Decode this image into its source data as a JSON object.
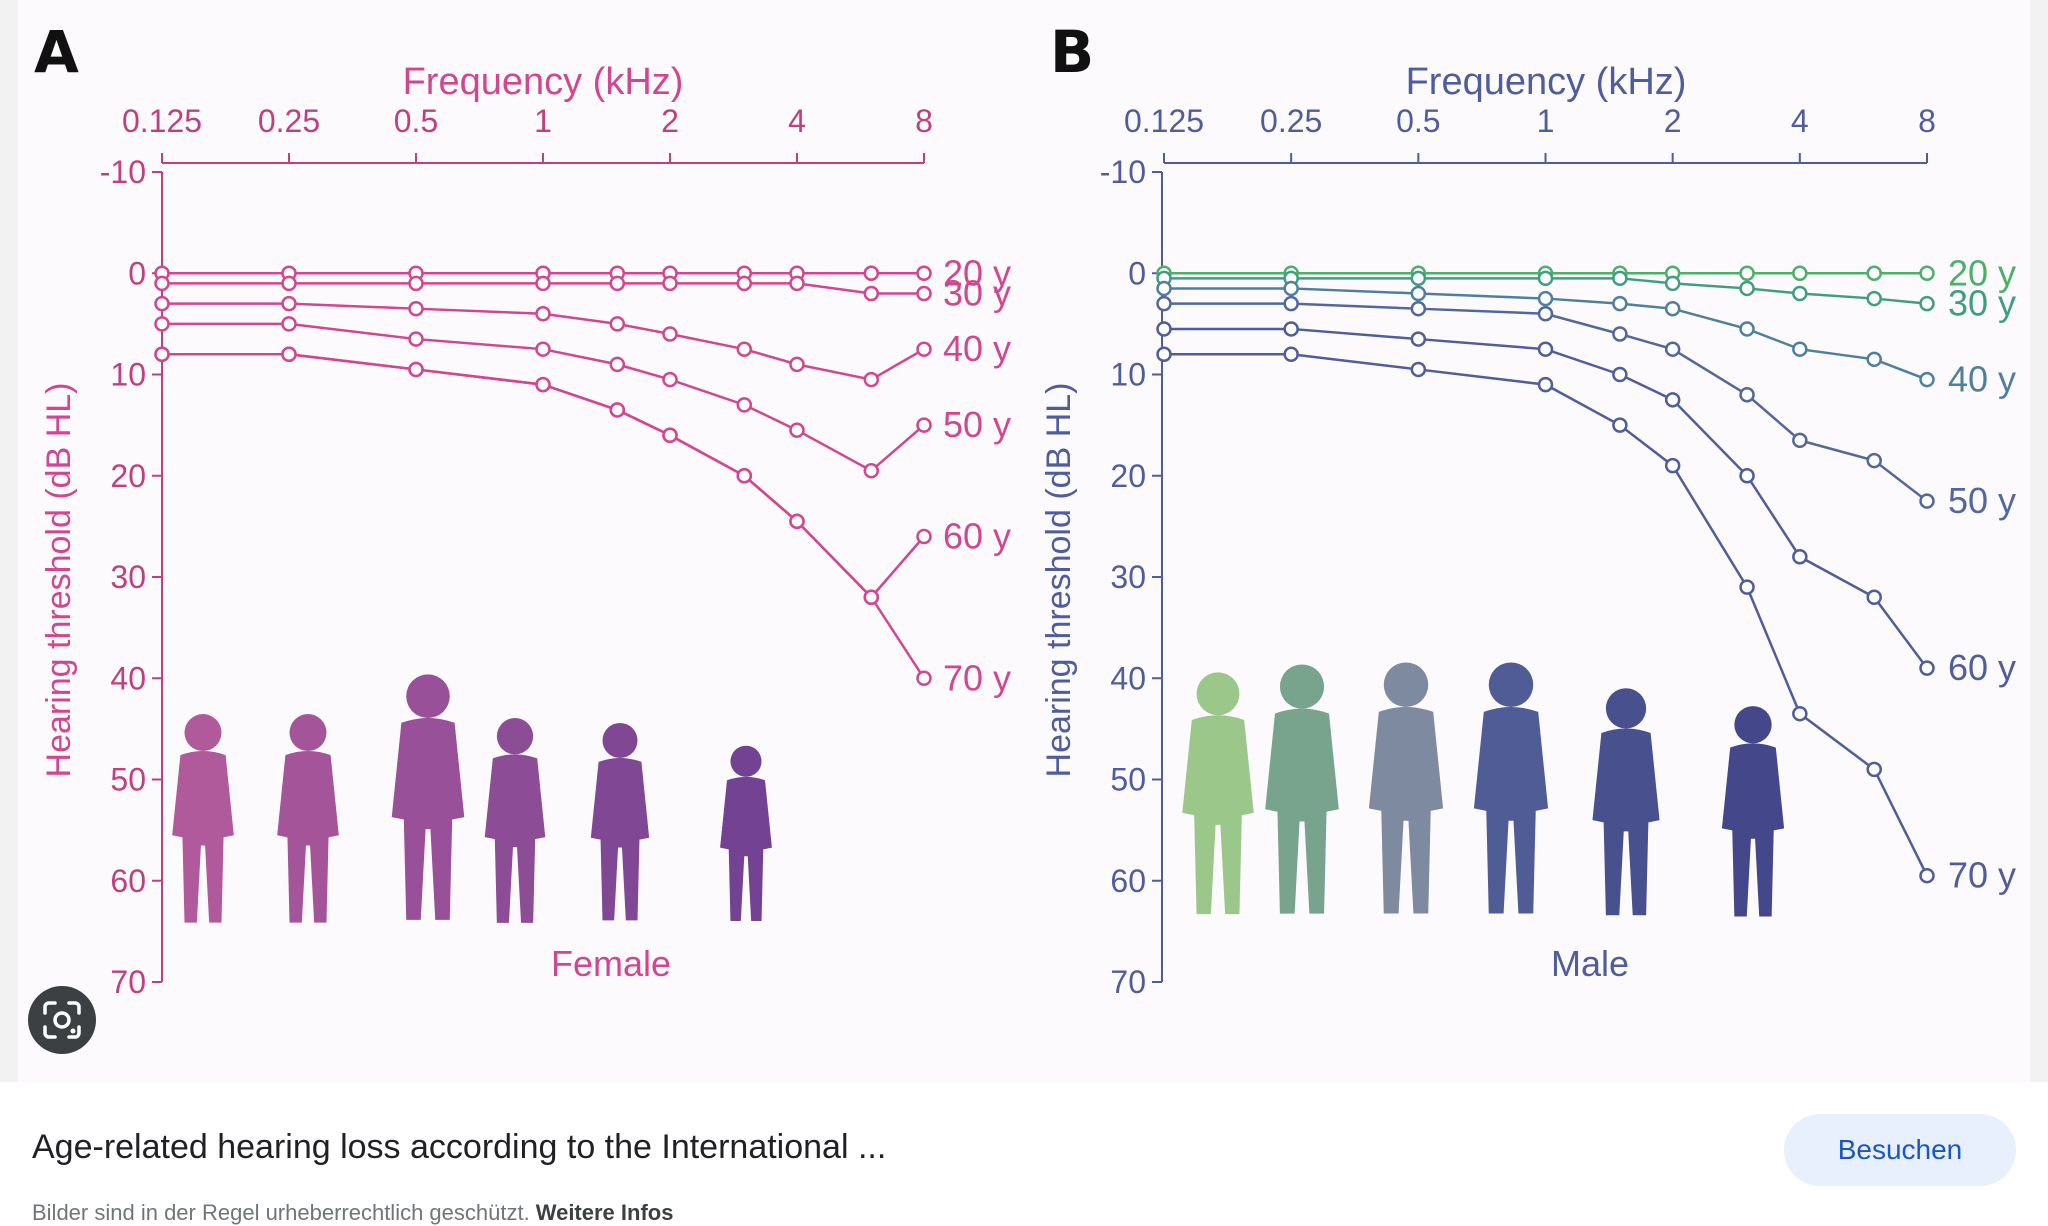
{
  "panels": [
    {
      "letter": "A",
      "top_axis_label": "Frequency (kHz)",
      "left_axis_label": "Hearing threshold (dB HL)",
      "bottom_label": "Female",
      "color": "#d2468f",
      "tick_color": "#c0407f",
      "silhouette_colors": [
        "#b05a9c",
        "#a4559a",
        "#985098",
        "#8c4c96",
        "#804894",
        "#744292"
      ]
    },
    {
      "letter": "B",
      "top_axis_label": "Frequency (kHz)",
      "left_axis_label": "Hearing threshold (dB HL)",
      "bottom_label": "Male",
      "color": "#4e5d9c",
      "tick_color": "#4e5d9c",
      "silhouette_colors": [
        "#9cc78a",
        "#78a48e",
        "#7e8aa0",
        "#505c96",
        "#48508e",
        "#44488a"
      ]
    }
  ],
  "chart_data": [
    {
      "type": "line",
      "title": "A",
      "xlabel": "Frequency (kHz)",
      "ylabel": "Hearing threshold (dB HL)",
      "x_ticks": [
        "0.125",
        "0.25",
        "0.5",
        "1",
        "2",
        "4",
        "8"
      ],
      "y_ticks": [
        -10,
        0,
        10,
        20,
        30,
        40,
        50,
        60,
        70
      ],
      "ylim": [
        -10,
        70
      ],
      "y_inverted": true,
      "x_scale": "log",
      "annotation": "Female",
      "x": [
        0.125,
        0.25,
        0.5,
        1,
        1.5,
        2,
        3,
        4,
        6,
        8
      ],
      "series": [
        {
          "name": "20 y",
          "color": "#d2468f",
          "values": [
            0,
            0,
            0,
            0,
            0,
            0,
            0,
            0,
            0,
            0
          ]
        },
        {
          "name": "30 y",
          "color": "#d2468f",
          "values": [
            1,
            1,
            1,
            1,
            1,
            1,
            1,
            1,
            2,
            2
          ]
        },
        {
          "name": "40 y",
          "color": "#d2468f",
          "values": [
            3,
            3,
            3.5,
            4,
            5,
            6,
            7.5,
            9,
            10.5,
            7.5
          ]
        },
        {
          "name": "50 y",
          "color": "#d2468f",
          "values": [
            5,
            5,
            6.5,
            7.5,
            9,
            10.5,
            13,
            15.5,
            19.5,
            15
          ]
        },
        {
          "name": "60 y",
          "color": "#d2468f",
          "values": [
            8,
            8,
            9.5,
            11,
            13.5,
            16,
            20,
            24.5,
            32,
            26
          ]
        },
        {
          "name": "70 y",
          "color": "#d2468f",
          "values": [
            8,
            8,
            9.5,
            11,
            13.5,
            16,
            20,
            24.5,
            32,
            40
          ]
        }
      ]
    },
    {
      "type": "line",
      "title": "B",
      "xlabel": "Frequency (kHz)",
      "ylabel": "Hearing threshold (dB HL)",
      "x_ticks": [
        "0.125",
        "0.25",
        "0.5",
        "1",
        "2",
        "4",
        "8"
      ],
      "y_ticks": [
        -10,
        0,
        10,
        20,
        30,
        40,
        50,
        60,
        70
      ],
      "ylim": [
        -10,
        70
      ],
      "y_inverted": true,
      "x_scale": "log",
      "annotation": "Male",
      "x": [
        0.125,
        0.25,
        0.5,
        1,
        1.5,
        2,
        3,
        4,
        6,
        8
      ],
      "series": [
        {
          "name": "20 y",
          "color": "#4caf6a",
          "values": [
            0,
            0,
            0,
            0,
            0,
            0,
            0,
            0,
            0,
            0
          ]
        },
        {
          "name": "30 y",
          "color": "#3f9e82",
          "values": [
            0.5,
            0.5,
            0.5,
            0.5,
            0.5,
            1,
            1.5,
            2,
            2.5,
            3
          ]
        },
        {
          "name": "40 y",
          "color": "#4f7fa0",
          "values": [
            1.5,
            1.5,
            2,
            2.5,
            3,
            3.5,
            5.5,
            7.5,
            8.5,
            10.5
          ]
        },
        {
          "name": "50 y",
          "color": "#51689e",
          "values": [
            3,
            3,
            3.5,
            4,
            6,
            7.5,
            12,
            16.5,
            18.5,
            22.5
          ]
        },
        {
          "name": "60 y",
          "color": "#4e5d9c",
          "values": [
            5.5,
            5.5,
            6.5,
            7.5,
            10,
            12.5,
            20,
            28,
            32,
            39
          ]
        },
        {
          "name": "70 y",
          "color": "#4e5d9c",
          "values": [
            8,
            8,
            9.5,
            11,
            15,
            19,
            31,
            43.5,
            49,
            59.5
          ]
        }
      ]
    }
  ],
  "caption": {
    "title": "Age-related hearing loss according to the International ...",
    "visit_label": "Besuchen",
    "copyright_text": "Bilder sind in der Regel urheberrechtlich geschützt.",
    "more_info_label": "Weitere Infos"
  },
  "icons": {
    "lens": "google-lens-icon"
  }
}
